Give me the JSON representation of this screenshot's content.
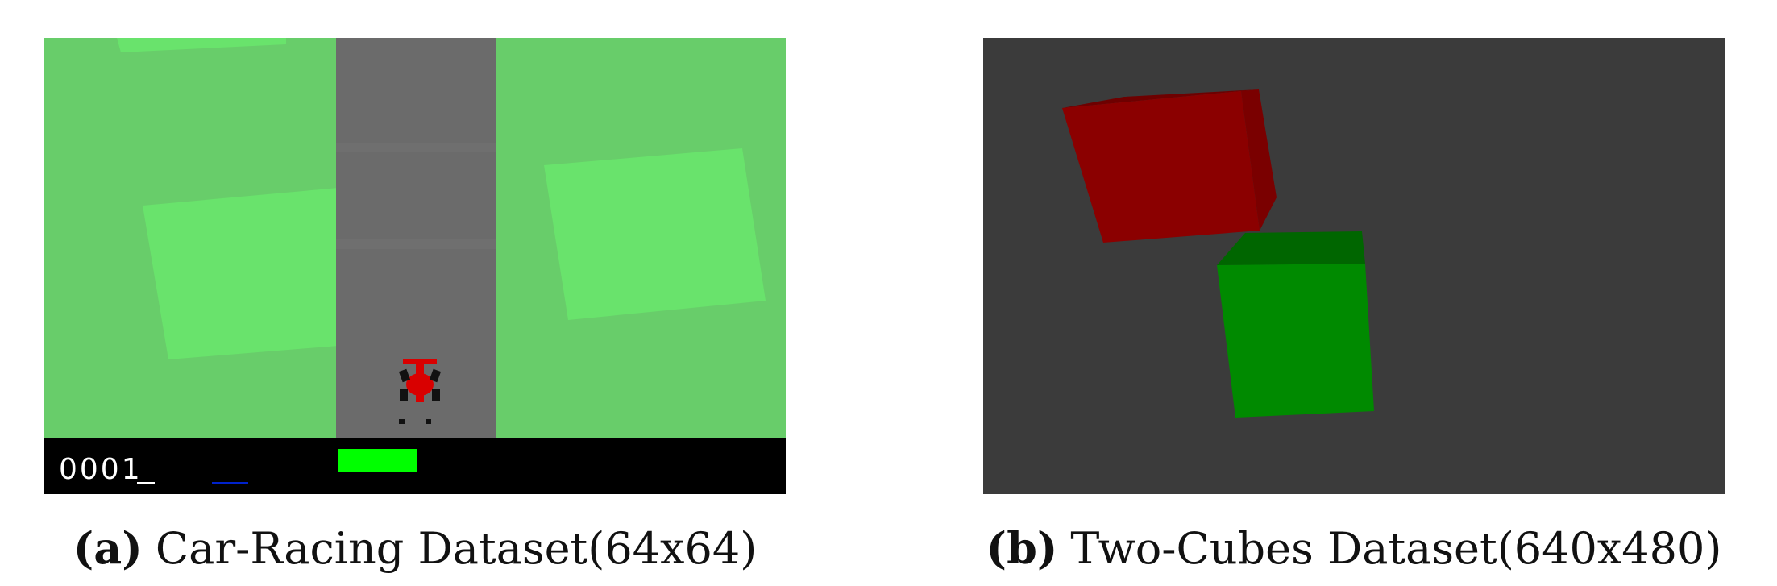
{
  "panel_a": {
    "score": "0001",
    "caption_label": "(a)",
    "caption_text": "Car-Racing Dataset(64x64)",
    "colors": {
      "grass": "#68cd6a",
      "grass_tile": "#69e36c",
      "road": "#6b6b6b",
      "car": "#d90000",
      "hud": "#000000",
      "speed_bar": "#00ff00"
    }
  },
  "panel_b": {
    "caption_label": "(b)",
    "caption_text": "Two-Cubes Dataset(640x480)",
    "colors": {
      "background": "#3b3b3b",
      "red_cube": "#8b0000",
      "green_cube": "#008a00"
    }
  }
}
